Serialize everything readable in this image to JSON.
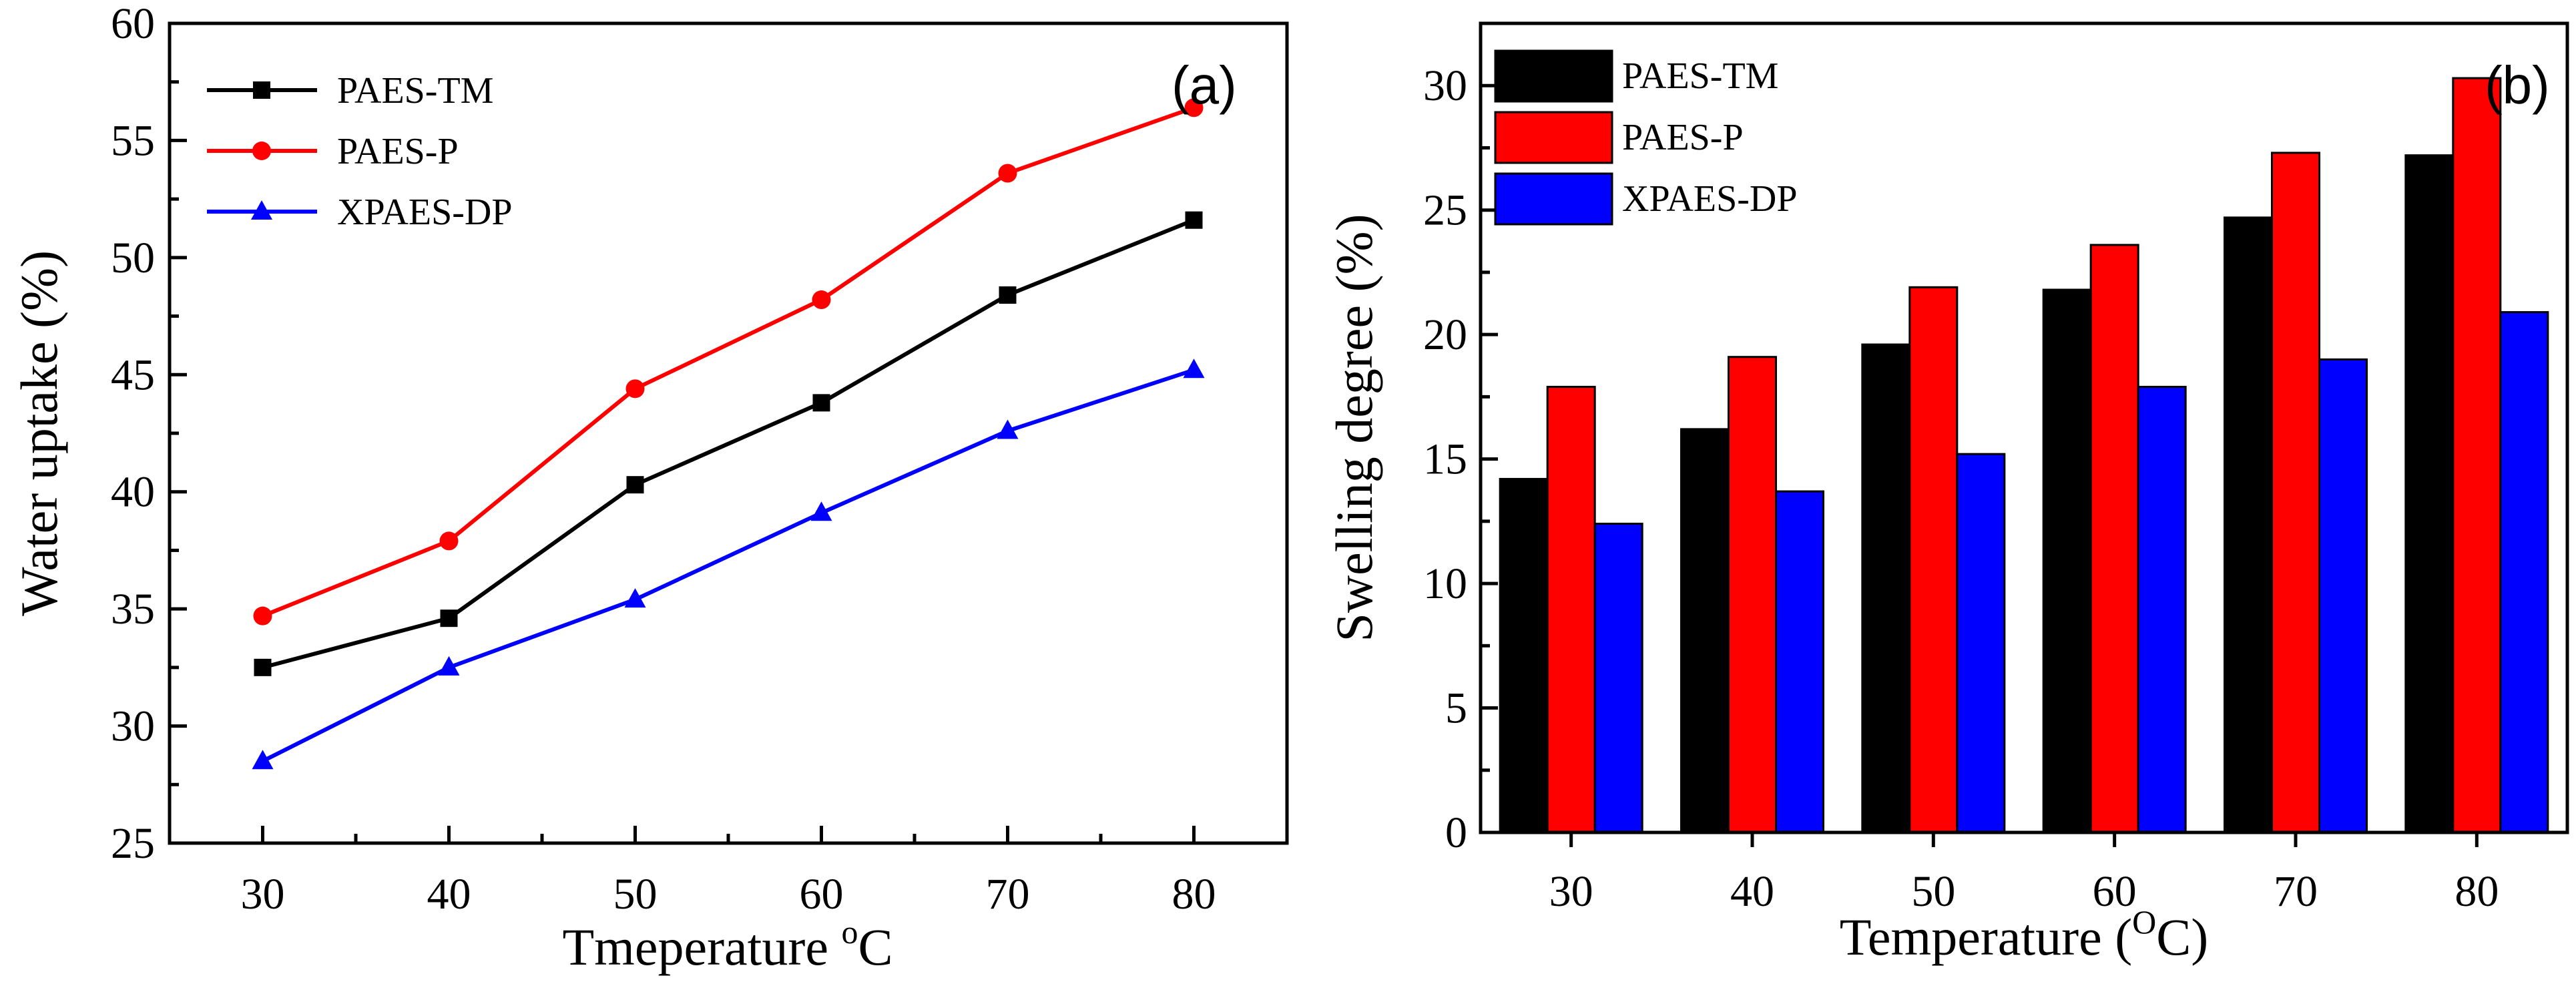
{
  "chart_data": [
    {
      "type": "line",
      "panel_label": "(a)",
      "x": [
        30,
        40,
        50,
        60,
        70,
        80
      ],
      "xlim": [
        25,
        85
      ],
      "ylim": [
        25,
        60
      ],
      "xticks": [
        "30",
        "40",
        "50",
        "60",
        "70",
        "80"
      ],
      "yticks": [
        "25",
        "30",
        "35",
        "40",
        "45",
        "50",
        "55",
        "60"
      ],
      "xlabel": "Tmeperature ",
      "xlabel_sup": "o",
      "xlabel_tail": "C",
      "ylabel": "Water uptake (%)",
      "legend_position": "top-left",
      "series": [
        {
          "name": "PAES-TM",
          "marker": "square",
          "color": "#000000",
          "values": [
            32.5,
            34.6,
            40.3,
            43.8,
            48.4,
            51.6
          ]
        },
        {
          "name": "PAES-P",
          "marker": "circle",
          "color": "#ff0000",
          "values": [
            34.7,
            37.9,
            44.4,
            48.2,
            53.6,
            56.4
          ]
        },
        {
          "name": "XPAES-DP",
          "marker": "triangle",
          "color": "#0000ff",
          "values": [
            28.5,
            32.5,
            35.4,
            39.1,
            42.6,
            45.2
          ]
        }
      ]
    },
    {
      "type": "bar",
      "panel_label": "(b)",
      "categories": [
        "30",
        "40",
        "50",
        "60",
        "70",
        "80"
      ],
      "ylim": [
        0,
        32.5
      ],
      "yticks": [
        "0",
        "5",
        "10",
        "15",
        "20",
        "25",
        "30"
      ],
      "xlabel": "Temperature (",
      "xlabel_sup": "O",
      "xlabel_tail": "C)",
      "ylabel": "Swelling degree (%)",
      "legend_position": "top-left",
      "series": [
        {
          "name": "PAES-TM",
          "color": "#000000",
          "values": [
            14.2,
            16.2,
            19.6,
            21.8,
            24.7,
            27.2
          ]
        },
        {
          "name": "PAES-P",
          "color": "#ff0000",
          "values": [
            17.9,
            19.1,
            21.9,
            23.6,
            27.3,
            30.3
          ]
        },
        {
          "name": "XPAES-DP",
          "color": "#0000ff",
          "values": [
            12.4,
            13.7,
            15.2,
            17.9,
            19.0,
            20.9
          ]
        }
      ]
    }
  ]
}
